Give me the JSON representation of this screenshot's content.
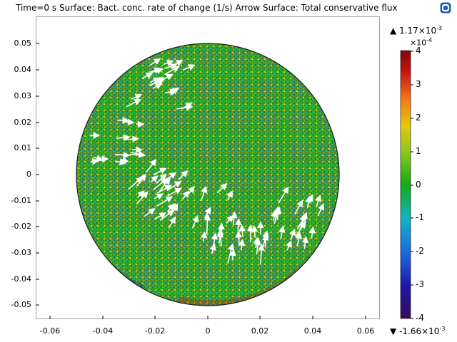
{
  "title": "Time=0 s   Surface: Bact. conc. rate of change (1/s)  Arrow Surface: Total conservative flux",
  "logo_icon": "comsol-logo-icon",
  "axes": {
    "y_ticks": [
      "0.05",
      "0.04",
      "0.03",
      "0.02",
      "0.01",
      "0",
      "-0.01",
      "-0.02",
      "-0.03",
      "-0.04",
      "-0.05"
    ],
    "x_ticks": [
      "-0.06",
      "-0.04",
      "-0.02",
      "0",
      "0.02",
      "0.04",
      "0.06"
    ]
  },
  "colorbar": {
    "max_base": "1.17×10",
    "max_exp": "-3",
    "min_base": "-1.66×10",
    "min_exp": "-3",
    "scale_base": "×10",
    "scale_exp": "-4",
    "ticks": [
      "4",
      "3",
      "2",
      "1",
      "0",
      "-1",
      "-2",
      "-3",
      "-4"
    ],
    "max_marker_icon": "up-triangle-icon",
    "min_marker_icon": "down-triangle-icon",
    "colors": [
      "#3a0a5a",
      "#1a1aa8",
      "#1e6be0",
      "#12b4c8",
      "#16a816",
      "#8cc81e",
      "#e6c80c",
      "#f07818",
      "#c81414",
      "#7a0808"
    ]
  },
  "plot": {
    "domain_color": "#3fae2a",
    "arrow_color": "#ffffff"
  }
}
